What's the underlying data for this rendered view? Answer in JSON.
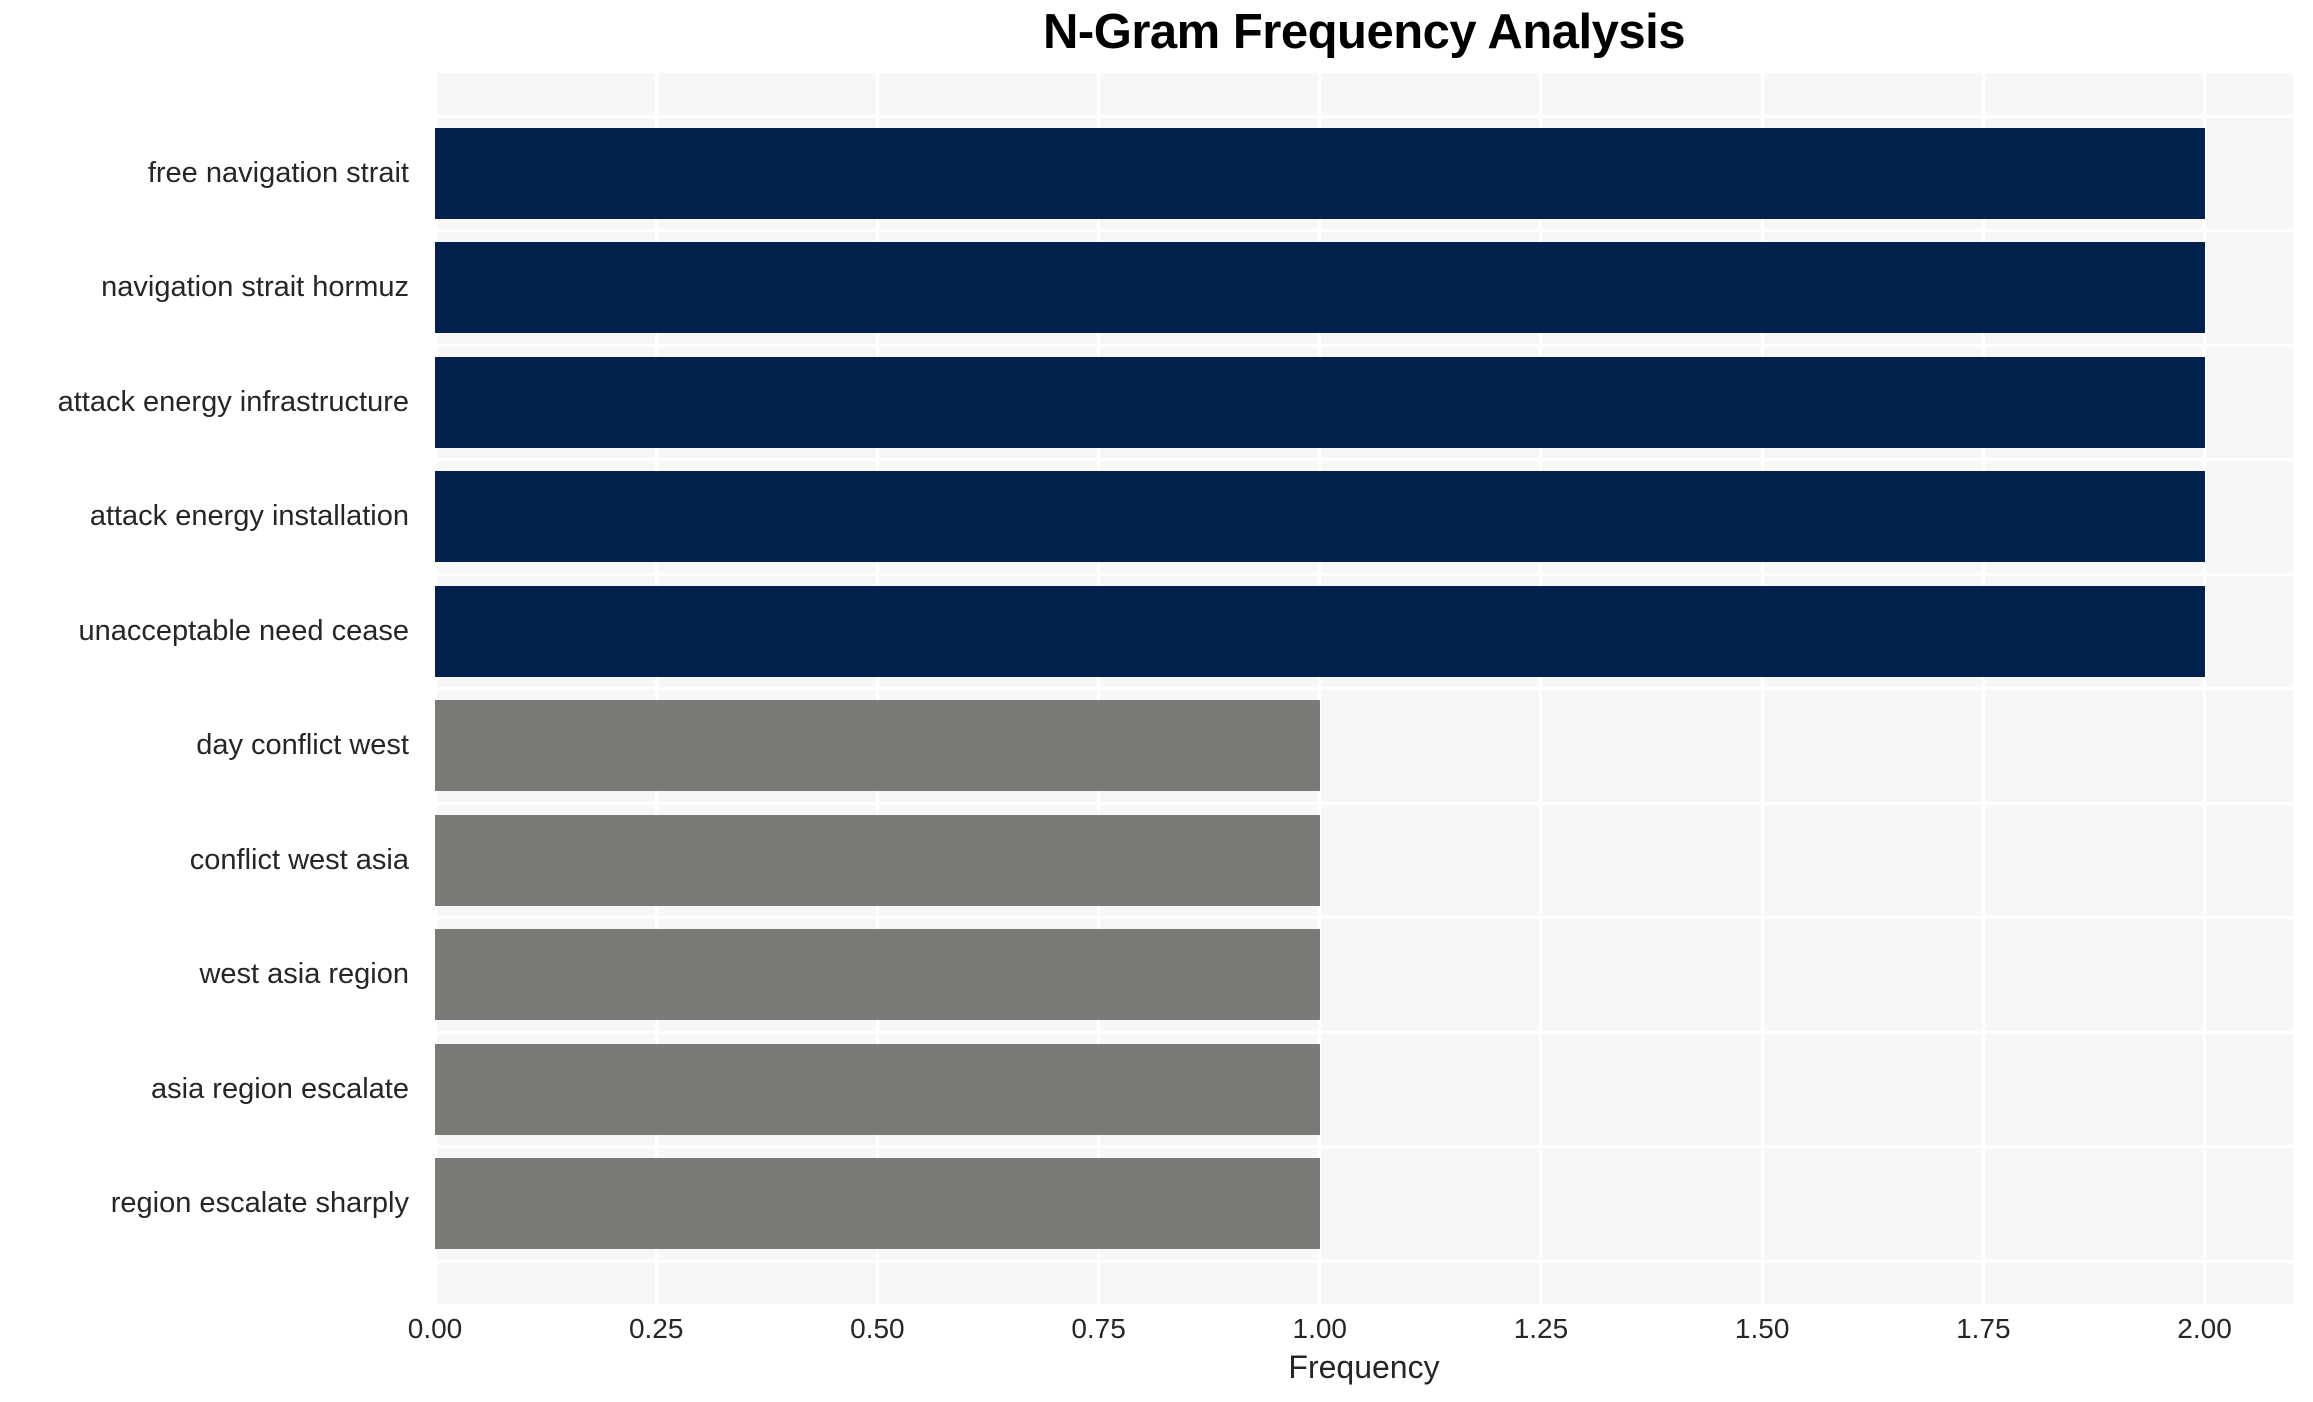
{
  "chart_data": {
    "type": "bar",
    "orientation": "horizontal",
    "title": "N-Gram Frequency Analysis",
    "xlabel": "Frequency",
    "ylabel": "",
    "categories": [
      "free navigation strait",
      "navigation strait hormuz",
      "attack energy infrastructure",
      "attack energy installation",
      "unacceptable need cease",
      "day conflict west",
      "conflict west asia",
      "west asia region",
      "asia region escalate",
      "region escalate sharply"
    ],
    "values": [
      2,
      2,
      2,
      2,
      2,
      1,
      1,
      1,
      1,
      1
    ],
    "bar_colors": [
      "#02224d",
      "#02224d",
      "#02224d",
      "#02224d",
      "#02224d",
      "#7b7a77",
      "#7b7a77",
      "#7b7a77",
      "#7b7a77",
      "#7b7a77"
    ],
    "xtick_labels": [
      "0.00",
      "0.25",
      "0.50",
      "0.75",
      "1.00",
      "1.25",
      "1.50",
      "1.75",
      "2.00"
    ],
    "xtick_values": [
      0,
      0.25,
      0.5,
      0.75,
      1.0,
      1.25,
      1.5,
      1.75,
      2.0
    ],
    "xlim": [
      0,
      2.1
    ],
    "grid": true,
    "legend": null,
    "colors": {
      "plot_background": "#f7f7f7",
      "gridline": "#ffffff",
      "tick_text": "#262626",
      "title_text": "#000000",
      "bar_high": "#02224d",
      "bar_low": "#7b7a77"
    }
  }
}
